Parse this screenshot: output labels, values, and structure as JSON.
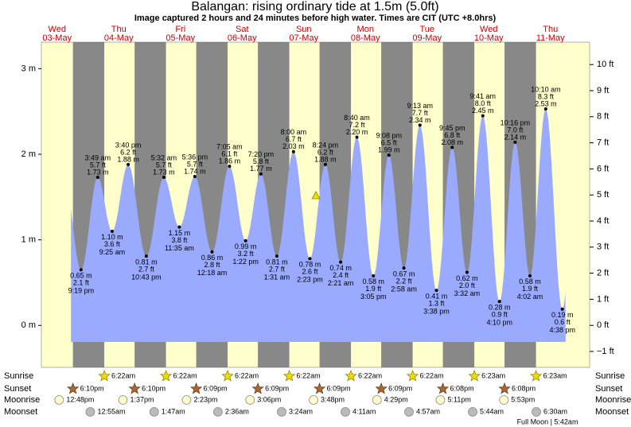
{
  "header": {
    "title": "Balangan: rising  ordinary tide at 1.5m (5.0ft)",
    "subtitle": "Image captured 2 hours and 24 minutes before high water. Times are CIT (UTC +8.0hrs)"
  },
  "chart_data": {
    "type": "tide",
    "ylim": [
      -0.49,
      3.31
    ],
    "yticks": [
      {
        "value": 0,
        "label": "0 m"
      },
      {
        "value": 1,
        "label": "1 m"
      },
      {
        "value": 2,
        "label": "2 m"
      },
      {
        "value": 3,
        "label": "3 m"
      }
    ],
    "y2lim": [
      -1.61,
      10.86
    ],
    "y2ticks": [
      {
        "value": -1,
        "label": "−1 ft"
      },
      {
        "value": 0,
        "label": "0 ft"
      },
      {
        "value": 1,
        "label": "1 ft"
      },
      {
        "value": 2,
        "label": "2 ft"
      },
      {
        "value": 3,
        "label": "3 ft"
      },
      {
        "value": 4,
        "label": "4 ft"
      },
      {
        "value": 5,
        "label": "5 ft"
      },
      {
        "value": 6,
        "label": "6 ft"
      },
      {
        "value": 7,
        "label": "7 ft"
      },
      {
        "value": 8,
        "label": "8 ft"
      },
      {
        "value": 9,
        "label": "9 ft"
      },
      {
        "value": 10,
        "label": "10 ft"
      }
    ],
    "days": [
      {
        "weekday": "Wed",
        "date": "03-May",
        "sunset": "6:10pm",
        "moonrise": "12:48pm",
        "tides": [
          {
            "time": "9:19 pm",
            "height": {
              "value": 0.65,
              "label": "0.65 m"
            },
            "feet": {
              "value": 2.1,
              "label": "2.1 ft"
            }
          }
        ]
      },
      {
        "weekday": "Thu",
        "date": "04-May",
        "sunrise": "6:22am",
        "sunset": "6:10pm",
        "moonrise": "1:37pm",
        "moonset": "12:55am",
        "tides": [
          {
            "time": "3:49 am",
            "height": {
              "value": 1.73,
              "label": "1.73 m"
            },
            "feet": {
              "value": 5.7,
              "label": "5.7 ft"
            }
          },
          {
            "time": "9:25 am",
            "height": {
              "value": 1.1,
              "label": "1.10 m"
            },
            "feet": {
              "value": 3.6,
              "label": "3.6 ft"
            }
          },
          {
            "time": "3:40 pm",
            "height": {
              "value": 1.88,
              "label": "1.88 m"
            },
            "feet": {
              "value": 6.2,
              "label": "6.2 ft"
            }
          },
          {
            "time": "10:43 pm",
            "height": {
              "value": 0.81,
              "label": "0.81 m"
            },
            "feet": {
              "value": 2.7,
              "label": "2.7 ft"
            }
          }
        ]
      },
      {
        "weekday": "Fri",
        "date": "05-May",
        "sunrise": "6:22am",
        "sunset": "6:09pm",
        "moonrise": "2:23pm",
        "moonset": "1:47am",
        "tides": [
          {
            "time": "5:32 am",
            "height": {
              "value": 1.73,
              "label": "1.73 m"
            },
            "feet": {
              "value": 5.7,
              "label": "5.7 ft"
            }
          },
          {
            "time": "11:35 am",
            "height": {
              "value": 1.15,
              "label": "1.15 m"
            },
            "feet": {
              "value": 3.8,
              "label": "3.8 ft"
            }
          },
          {
            "time": "5:36 pm",
            "height": {
              "value": 1.74,
              "label": "1.74 m"
            },
            "feet": {
              "value": 5.7,
              "label": "5.7 ft"
            }
          }
        ]
      },
      {
        "weekday": "Sat",
        "date": "06-May",
        "sunrise": "6:22am",
        "sunset": "6:09pm",
        "moonrise": "3:06pm",
        "moonset": "2:36am",
        "tides": [
          {
            "time": "12:18 am",
            "height": {
              "value": 0.86,
              "label": "0.86 m"
            },
            "feet": {
              "value": 2.8,
              "label": "2.8 ft"
            }
          },
          {
            "time": "7:05 am",
            "height": {
              "value": 1.86,
              "label": "1.86 m"
            },
            "feet": {
              "value": 6.1,
              "label": "6.1 ft"
            }
          },
          {
            "time": "1:22 pm",
            "height": {
              "value": 0.99,
              "label": "0.99 m"
            },
            "feet": {
              "value": 3.2,
              "label": "3.2 ft"
            }
          },
          {
            "time": "7:20 pm",
            "height": {
              "value": 1.77,
              "label": "1.77 m"
            },
            "feet": {
              "value": 5.8,
              "label": "5.8 ft"
            }
          }
        ]
      },
      {
        "weekday": "Sun",
        "date": "07-May",
        "sunrise": "6:22am",
        "sunset": "6:09pm",
        "moonrise": "3:48pm",
        "moonset": "3:24am",
        "tides": [
          {
            "time": "1:31 am",
            "height": {
              "value": 0.81,
              "label": "0.81 m"
            },
            "feet": {
              "value": 2.7,
              "label": "2.7 ft"
            }
          },
          {
            "time": "8:00 am",
            "height": {
              "value": 2.03,
              "label": "2.03 m"
            },
            "feet": {
              "value": 6.7,
              "label": "6.7 ft"
            }
          },
          {
            "time": "2:23 pm",
            "height": {
              "value": 0.78,
              "label": "0.78 m"
            },
            "feet": {
              "value": 2.6,
              "label": "2.6 ft"
            }
          },
          {
            "time": "8:24 pm",
            "height": {
              "value": 1.88,
              "label": "1.88 m"
            },
            "feet": {
              "value": 6.2,
              "label": "6.2 ft"
            }
          }
        ]
      },
      {
        "weekday": "Mon",
        "date": "08-May",
        "sunrise": "6:22am",
        "sunset": "6:09pm",
        "moonrise": "4:29pm",
        "moonset": "4:11am",
        "tides": [
          {
            "time": "2:21 am",
            "height": {
              "value": 0.74,
              "label": "0.74 m"
            },
            "feet": {
              "value": 2.4,
              "label": "2.4 ft"
            }
          },
          {
            "time": "8:40 am",
            "height": {
              "value": 2.2,
              "label": "2.20 m"
            },
            "feet": {
              "value": 7.2,
              "label": "7.2 ft"
            }
          },
          {
            "time": "3:05 pm",
            "height": {
              "value": 0.58,
              "label": "0.58 m"
            },
            "feet": {
              "value": 1.9,
              "label": "1.9 ft"
            }
          },
          {
            "time": "9:08 pm",
            "height": {
              "value": 1.99,
              "label": "1.99 m"
            },
            "feet": {
              "value": 6.5,
              "label": "6.5 ft"
            }
          }
        ]
      },
      {
        "weekday": "Tue",
        "date": "09-May",
        "sunrise": "6:22am",
        "sunset": "6:08pm",
        "moonrise": "5:11pm",
        "moonset": "4:57am",
        "tides": [
          {
            "time": "2:58 am",
            "height": {
              "value": 0.67,
              "label": "0.67 m"
            },
            "feet": {
              "value": 2.2,
              "label": "2.2 ft"
            }
          },
          {
            "time": "9:13 am",
            "height": {
              "value": 2.34,
              "label": "2.34 m"
            },
            "feet": {
              "value": 7.7,
              "label": "7.7 ft"
            }
          },
          {
            "time": "3:38 pm",
            "height": {
              "value": 0.41,
              "label": "0.41 m"
            },
            "feet": {
              "value": 1.3,
              "label": "1.3 ft"
            }
          },
          {
            "time": "9:45 pm",
            "height": {
              "value": 2.08,
              "label": "2.08 m"
            },
            "feet": {
              "value": 6.8,
              "label": "6.8 ft"
            }
          }
        ]
      },
      {
        "weekday": "Wed",
        "date": "10-May",
        "sunrise": "6:23am",
        "sunset": "6:08pm",
        "moonrise": "5:53pm",
        "moonset": "5:44am",
        "tides": [
          {
            "time": "3:32 am",
            "height": {
              "value": 0.62,
              "label": "0.62 m"
            },
            "feet": {
              "value": 2.0,
              "label": "2.0 ft"
            }
          },
          {
            "time": "9:41 am",
            "height": {
              "value": 2.45,
              "label": "2.45 m"
            },
            "feet": {
              "value": 8.0,
              "label": "8.0 ft"
            }
          },
          {
            "time": "4:10 pm",
            "height": {
              "value": 0.28,
              "label": "0.28 m"
            },
            "feet": {
              "value": 0.9,
              "label": "0.9 ft"
            }
          },
          {
            "time": "10:16 pm",
            "height": {
              "value": 2.14,
              "label": "2.14 m"
            },
            "feet": {
              "value": 7.0,
              "label": "7.0 ft"
            }
          }
        ]
      },
      {
        "weekday": "Thu",
        "date": "11-May",
        "sunrise": "6:23am",
        "moonset": "6:30am",
        "tides": [
          {
            "time": "4:02 am",
            "height": {
              "value": 0.58,
              "label": "0.58 m"
            },
            "feet": {
              "value": 1.9,
              "label": "1.9 ft"
            }
          },
          {
            "time": "10:10 am",
            "height": {
              "value": 2.53,
              "label": "2.53 m"
            },
            "feet": {
              "value": 8.3,
              "label": "8.3 ft"
            }
          },
          {
            "time": "4:38 pm",
            "height": {
              "value": 0.19,
              "label": "0.19 m"
            },
            "feet": {
              "value": 0.6,
              "label": "0.6 ft"
            }
          }
        ]
      }
    ]
  },
  "row_labels": {
    "sunrise": "Sunrise",
    "sunset": "Sunset",
    "moonrise": "Moonrise",
    "moonset": "Moonset"
  },
  "footer": "Full Moon | 5:42am"
}
